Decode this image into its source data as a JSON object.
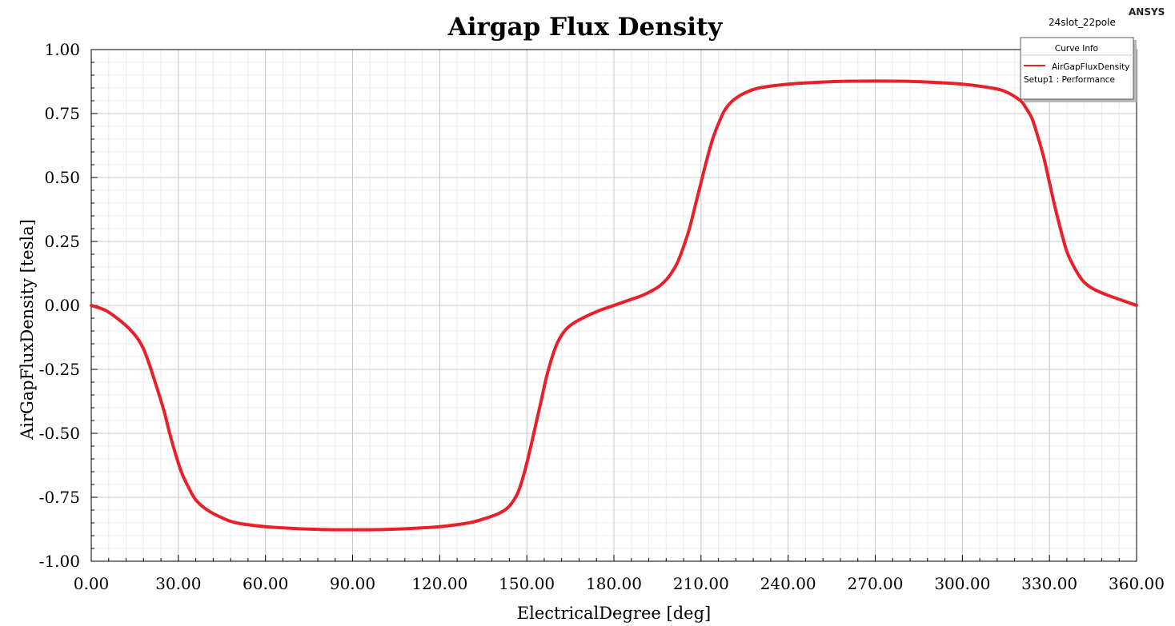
{
  "header": {
    "brand": "ANSYS",
    "design_name": "24slot_22pole"
  },
  "legend": {
    "title": "Curve Info",
    "entry_label": "AirGapFluxDensity",
    "entry_subtitle": "Setup1 : Performance"
  },
  "chart_data": {
    "type": "line",
    "title": "Airgap Flux Density",
    "xlabel": "ElectricalDegree [deg]",
    "ylabel": "AirGapFluxDensity [tesla]",
    "xlim": [
      0,
      360
    ],
    "ylim": [
      -1,
      1
    ],
    "x_tick_labels": [
      "0.00",
      "30.00",
      "60.00",
      "90.00",
      "120.00",
      "150.00",
      "180.00",
      "210.00",
      "240.00",
      "270.00",
      "300.00",
      "330.00",
      "360.00"
    ],
    "y_tick_labels": [
      "1.00",
      "0.75",
      "0.50",
      "0.25",
      "0.00",
      "-0.25",
      "-0.50",
      "-0.75",
      "-1.00"
    ],
    "grid": true,
    "legend_position": "top-right",
    "series_color": "#e8202a",
    "series": [
      {
        "name": "AirGapFluxDensity",
        "x": [
          0,
          5,
          10,
          13,
          16,
          18,
          20,
          22,
          25,
          27,
          29,
          31,
          33,
          36,
          40,
          45,
          50,
          60,
          70,
          80,
          90,
          100,
          110,
          120,
          130,
          135,
          140,
          143,
          145,
          147,
          149,
          151,
          153,
          155,
          157,
          160,
          163,
          166,
          170,
          175,
          180,
          185,
          190,
          195,
          198,
          200,
          202,
          204,
          206,
          208,
          210,
          212,
          214,
          216,
          218,
          220,
          222,
          225,
          230,
          240,
          250,
          260,
          270,
          280,
          290,
          300,
          310,
          315,
          320,
          322,
          324,
          326,
          328,
          330,
          332,
          334,
          336,
          338,
          340,
          342,
          345,
          350,
          355,
          360
        ],
        "y": [
          0.0,
          -0.02,
          -0.06,
          -0.09,
          -0.13,
          -0.17,
          -0.23,
          -0.3,
          -0.41,
          -0.5,
          -0.58,
          -0.65,
          -0.7,
          -0.76,
          -0.8,
          -0.83,
          -0.85,
          -0.865,
          -0.872,
          -0.876,
          -0.877,
          -0.876,
          -0.872,
          -0.865,
          -0.85,
          -0.835,
          -0.815,
          -0.795,
          -0.77,
          -0.73,
          -0.66,
          -0.57,
          -0.47,
          -0.37,
          -0.27,
          -0.16,
          -0.1,
          -0.07,
          -0.045,
          -0.02,
          0.0,
          0.02,
          0.04,
          0.07,
          0.1,
          0.13,
          0.17,
          0.23,
          0.3,
          0.39,
          0.48,
          0.57,
          0.65,
          0.71,
          0.76,
          0.79,
          0.81,
          0.83,
          0.85,
          0.865,
          0.872,
          0.876,
          0.877,
          0.876,
          0.872,
          0.865,
          0.85,
          0.835,
          0.8,
          0.77,
          0.73,
          0.66,
          0.58,
          0.48,
          0.38,
          0.29,
          0.21,
          0.16,
          0.12,
          0.09,
          0.065,
          0.04,
          0.02,
          0.0
        ]
      }
    ]
  }
}
